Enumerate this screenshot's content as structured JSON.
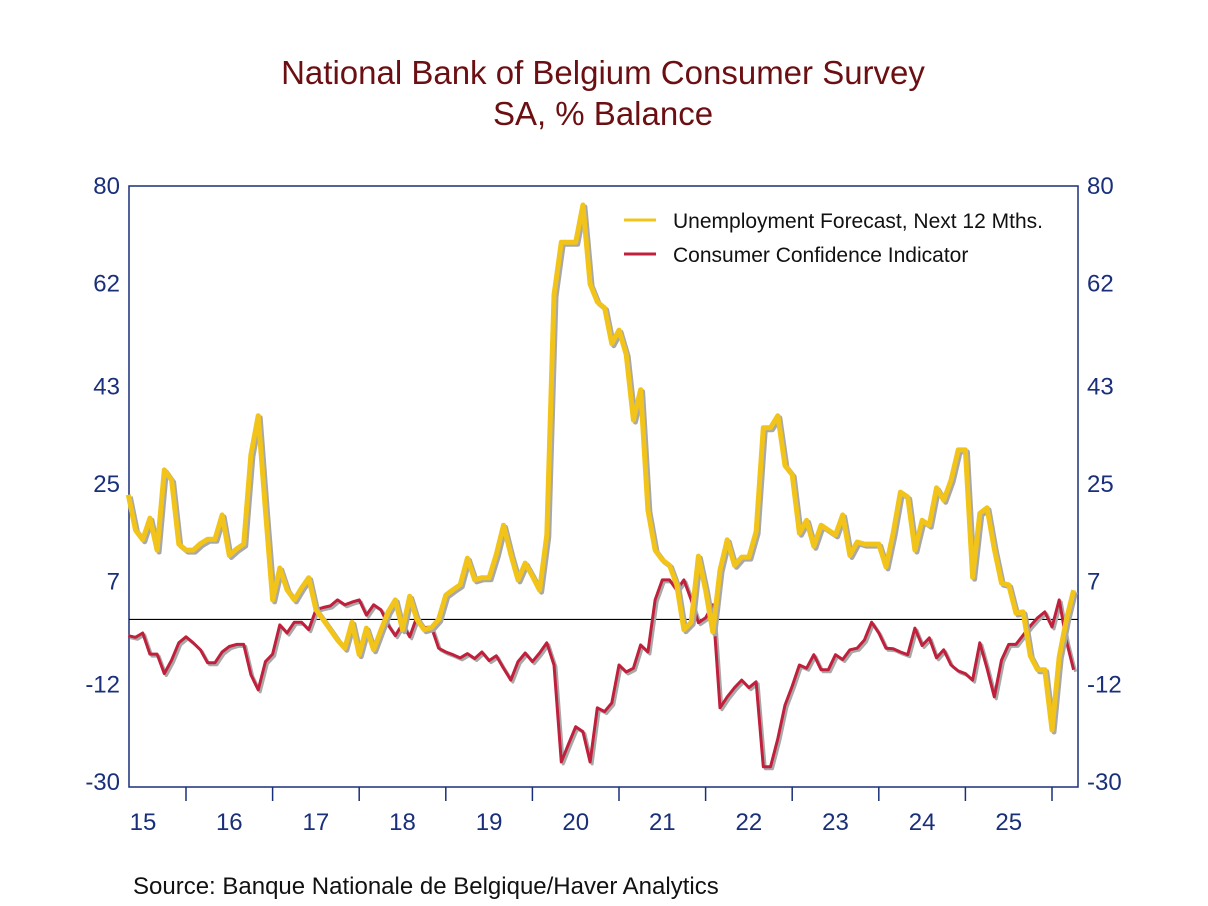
{
  "chart_data": {
    "type": "line",
    "title": "National Bank of Belgium Consumer Survey",
    "subtitle": "SA, % Balance",
    "source": "Source:  Banque Nationale de Belgique/Haver Analytics",
    "x_start": "2015-05",
    "x_frequency": "monthly",
    "x_tick_labels": [
      "15",
      "16",
      "17",
      "18",
      "19",
      "20",
      "21",
      "22",
      "23",
      "24",
      "25"
    ],
    "y_ticks": [
      80,
      62,
      43,
      25,
      7,
      -12,
      -30
    ],
    "y_tick_labels": [
      "80",
      "62",
      "43",
      "25",
      "7",
      "-12",
      "-30"
    ],
    "ylim": [
      -30,
      80
    ],
    "y_axes": "left-and-right",
    "zero_line": true,
    "grid": false,
    "legend_position": "top-right",
    "series": [
      {
        "name": "Unemployment Forecast, Next 12 Mths.",
        "color": "#f2c419",
        "values": [
          23,
          16.5,
          14.7,
          18.7,
          12.8,
          27.6,
          25.7,
          13.9,
          12.8,
          12.8,
          14,
          14.8,
          14.8,
          19.3,
          11.8,
          13,
          13.9,
          30.4,
          37.6,
          20.2,
          3.6,
          9.5,
          5.5,
          3.6,
          5.8,
          7.7,
          1.8,
          0,
          -1.9,
          -3.8,
          -5.3,
          -0.5,
          -6.5,
          -1.6,
          -5.6,
          -2,
          1.4,
          3.6,
          -1.9,
          4.3,
          0,
          -1.9,
          -1.5,
          0,
          4.5,
          5.5,
          6.4,
          11.3,
          7.3,
          7.7,
          7.7,
          12,
          17.4,
          12,
          7.3,
          10.4,
          8,
          5.4,
          15.6,
          59.9,
          69.6,
          69.6,
          69.6,
          76.5,
          61.9,
          58.6,
          57.5,
          50.9,
          53.4,
          48.9,
          36.8,
          42.4,
          20.2,
          12.8,
          11,
          10,
          6.4,
          -1.9,
          -0.5,
          11.7,
          5.4,
          -2.3,
          9.1,
          14.7,
          10,
          11.5,
          11.5,
          16.2,
          35.4,
          35.4,
          37.6,
          28.4,
          26.7,
          15.9,
          18.3,
          13.5,
          17.4,
          16.5,
          15.6,
          19.3,
          11.8,
          14.3,
          13.9,
          13.9,
          13.9,
          9.7,
          16,
          23.5,
          22.6,
          12.8,
          18.3,
          17.4,
          24.3,
          22,
          25.7,
          31.3,
          31.3,
          7.8,
          19.6,
          20.6,
          13,
          6.7,
          6.4,
          1.2,
          1.4,
          -6.7,
          -9.3,
          -9.3,
          -20.4,
          -6.9,
          0,
          5.4
        ]
      },
      {
        "name": "Consumer Confidence Indicator",
        "color": "#c0203c",
        "values": [
          -3,
          -3.3,
          -2.5,
          -6.4,
          -6.4,
          -10,
          -7.5,
          -4.3,
          -3.2,
          -4.3,
          -5.6,
          -8,
          -8,
          -6,
          -5,
          -4.6,
          -4.6,
          -10.2,
          -13,
          -7.8,
          -6.4,
          -1,
          -2.5,
          -0.5,
          -0.5,
          -1.9,
          1.8,
          2.2,
          2.5,
          3.6,
          2.7,
          3.2,
          3.6,
          0.8,
          2.7,
          1.8,
          -1,
          -3,
          -0.8,
          -3.2,
          0.5,
          -1.5,
          -1.4,
          -5.3,
          -6,
          -6.5,
          -7.1,
          -6.3,
          -7.2,
          -6,
          -7.6,
          -6.7,
          -9,
          -11.2,
          -7.8,
          -6.2,
          -7.8,
          -6.2,
          -4.3,
          -8.4,
          -26.3,
          -23,
          -19.8,
          -20.7,
          -26.3,
          -16.3,
          -17,
          -15.4,
          -8.4,
          -9.7,
          -9,
          -4.7,
          -6,
          3.6,
          7.3,
          7.3,
          5.4,
          7.3,
          3.6,
          -0.6,
          0.3,
          2.7,
          -16.3,
          -14.3,
          -12.6,
          -11.2,
          -12.6,
          -11.5,
          -27.2,
          -27.2,
          -22,
          -15.8,
          -12.3,
          -8.4,
          -9,
          -6.5,
          -9.3,
          -9.3,
          -6.5,
          -7.4,
          -5.6,
          -5.3,
          -3.8,
          -0.5,
          -2.5,
          -5.3,
          -5.4,
          -6,
          -6.5,
          -1.6,
          -4.8,
          -3.4,
          -7.1,
          -5.6,
          -8.4,
          -9.5,
          -10,
          -11.2,
          -4.3,
          -9,
          -14.3,
          -7.5,
          -4.6,
          -4.6,
          -2.9,
          -1.2,
          0.3,
          1.4,
          -1.4,
          3.6,
          -4,
          -9.3
        ]
      }
    ]
  }
}
